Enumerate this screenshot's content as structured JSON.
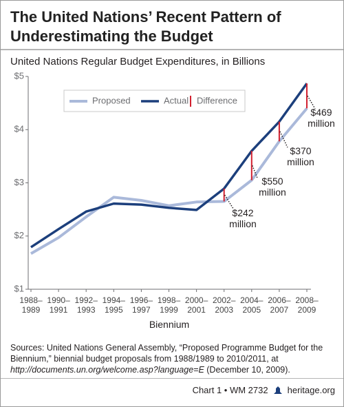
{
  "chart_data": {
    "type": "line",
    "title": "The United Nations’ Recent Pattern of Underestimating the Budget",
    "subtitle": "United Nations Regular Budget Expenditures, in Billions",
    "x_label": "Biennium",
    "categories": [
      "1988–1989",
      "1990–1991",
      "1992–1993",
      "1994–1995",
      "1996–1997",
      "1998–1999",
      "2000–2001",
      "2002–2003",
      "2004–2005",
      "2006–2007",
      "2008–2009"
    ],
    "series": [
      {
        "name": "Proposed",
        "color": "#aab9da",
        "values": [
          1.67,
          1.97,
          2.36,
          2.73,
          2.67,
          2.57,
          2.64,
          2.65,
          3.05,
          3.78,
          4.4
        ]
      },
      {
        "name": "Actual",
        "color": "#1c3f7c",
        "values": [
          1.79,
          2.13,
          2.46,
          2.61,
          2.59,
          2.53,
          2.49,
          2.892,
          3.6,
          4.15,
          4.869
        ]
      },
      {
        "name": "Difference",
        "color": "#d2202f",
        "values": [
          null,
          null,
          null,
          null,
          null,
          null,
          null,
          0.242,
          0.55,
          0.37,
          0.469
        ],
        "value_labels": [
          null,
          null,
          null,
          null,
          null,
          null,
          null,
          "$242 million",
          "$550 million",
          "$370 million",
          "$469 million"
        ]
      }
    ],
    "ylim": [
      1,
      5
    ],
    "yticks": [
      {
        "value": 1,
        "label": "$1"
      },
      {
        "value": 2,
        "label": "$2"
      },
      {
        "value": 3,
        "label": "$3"
      },
      {
        "value": 4,
        "label": "$4"
      },
      {
        "value": 5,
        "label": "$5"
      }
    ],
    "grid": false
  },
  "notes": {
    "label": "Sources:",
    "text": "United Nations General Assembly, “Proposed Programme Budget for the Biennium,” biennial budget proposals from 1988/1989 to 2010/2011, at",
    "url": "http://documents.un.org/welcome.asp?language=E",
    "date": "(December 10, 2009)."
  },
  "footer": {
    "chart_id": "Chart 1 • WM 2732",
    "site": "heritage.org"
  }
}
